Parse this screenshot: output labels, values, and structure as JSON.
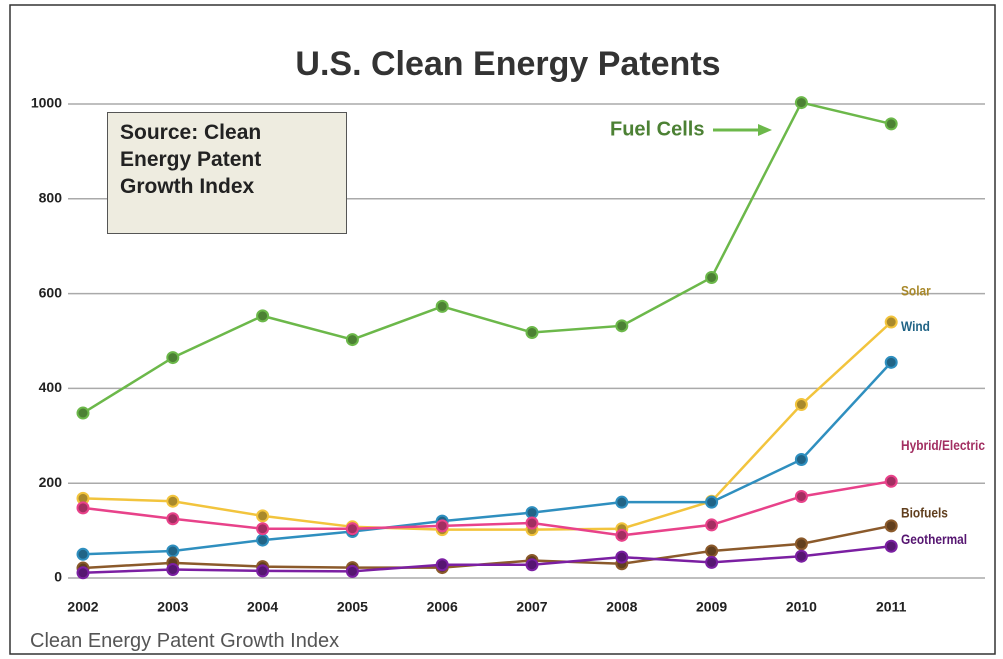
{
  "chart_data": {
    "type": "line",
    "title": "U.S. Clean Energy Patents",
    "source_note": "Source: Clean Energy Patent Growth Index",
    "caption": "Clean Energy Patent Growth Index",
    "categories": [
      "2002",
      "2003",
      "2004",
      "2005",
      "2006",
      "2007",
      "2008",
      "2009",
      "2010",
      "2011"
    ],
    "ylim": [
      0,
      1000
    ],
    "yticks": [
      0,
      200,
      400,
      600,
      800,
      1000
    ],
    "grid": true,
    "series": [
      {
        "name": "Fuel Cells",
        "color": "#6cb84a",
        "values": [
          348,
          465,
          553,
          503,
          573,
          518,
          532,
          634,
          1003,
          958
        ]
      },
      {
        "name": "Solar",
        "color": "#f2c43d",
        "values": [
          168,
          162,
          131,
          108,
          102,
          102,
          104,
          162,
          366,
          540
        ]
      },
      {
        "name": "Wind",
        "color": "#2f8fbf",
        "values": [
          50,
          57,
          80,
          98,
          120,
          138,
          160,
          160,
          250,
          455
        ]
      },
      {
        "name": "Hybrid/Electric",
        "color": "#e8428a",
        "values": [
          148,
          125,
          104,
          104,
          110,
          116,
          90,
          112,
          172,
          204
        ]
      },
      {
        "name": "Biofuels",
        "color": "#8b5a2b",
        "values": [
          21,
          32,
          24,
          22,
          22,
          37,
          30,
          57,
          72,
          110
        ]
      },
      {
        "name": "Geothermal",
        "color": "#7b1fa2",
        "values": [
          11,
          18,
          15,
          14,
          28,
          28,
          44,
          33,
          46,
          67
        ]
      }
    ]
  }
}
